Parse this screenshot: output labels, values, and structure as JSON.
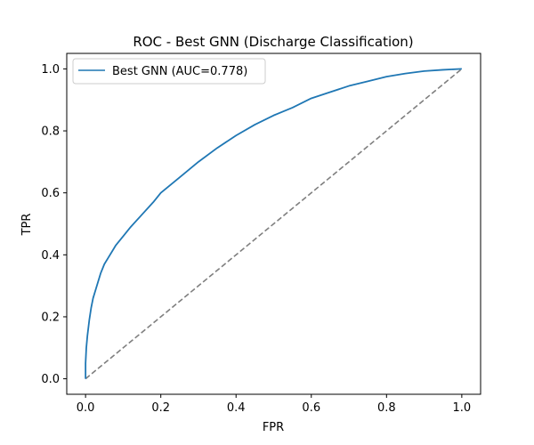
{
  "chart_data": {
    "type": "line",
    "title": "ROC - Best GNN (Discharge Classification)",
    "xlabel": "FPR",
    "ylabel": "TPR",
    "xlim": [
      -0.05,
      1.05
    ],
    "ylim": [
      -0.05,
      1.05
    ],
    "xticks": [
      0.0,
      0.2,
      0.4,
      0.6,
      0.8,
      1.0
    ],
    "yticks": [
      0.0,
      0.2,
      0.4,
      0.6,
      0.8,
      1.0
    ],
    "xtick_labels": [
      "0.0",
      "0.2",
      "0.4",
      "0.6",
      "0.8",
      "1.0"
    ],
    "ytick_labels": [
      "0.0",
      "0.2",
      "0.4",
      "0.6",
      "0.8",
      "1.0"
    ],
    "grid": false,
    "legend": {
      "placement": "top-left"
    },
    "series": [
      {
        "name": "Best GNN (AUC=0.778)",
        "color": "#1f77b4",
        "style": "solid",
        "x": [
          0.0,
          0.0,
          0.002,
          0.005,
          0.01,
          0.015,
          0.02,
          0.03,
          0.04,
          0.05,
          0.06,
          0.08,
          0.1,
          0.12,
          0.15,
          0.18,
          0.2,
          0.25,
          0.3,
          0.35,
          0.4,
          0.45,
          0.5,
          0.55,
          0.6,
          0.65,
          0.7,
          0.75,
          0.8,
          0.85,
          0.9,
          0.95,
          1.0
        ],
        "y": [
          0.0,
          0.05,
          0.1,
          0.14,
          0.19,
          0.23,
          0.26,
          0.3,
          0.34,
          0.37,
          0.39,
          0.43,
          0.46,
          0.49,
          0.53,
          0.57,
          0.6,
          0.65,
          0.7,
          0.745,
          0.785,
          0.82,
          0.85,
          0.875,
          0.905,
          0.925,
          0.945,
          0.96,
          0.975,
          0.985,
          0.993,
          0.997,
          1.0
        ]
      },
      {
        "name": "",
        "color": "#7f7f7f",
        "style": "dashed",
        "x": [
          0.0,
          1.0
        ],
        "y": [
          0.0,
          1.0
        ]
      }
    ]
  }
}
